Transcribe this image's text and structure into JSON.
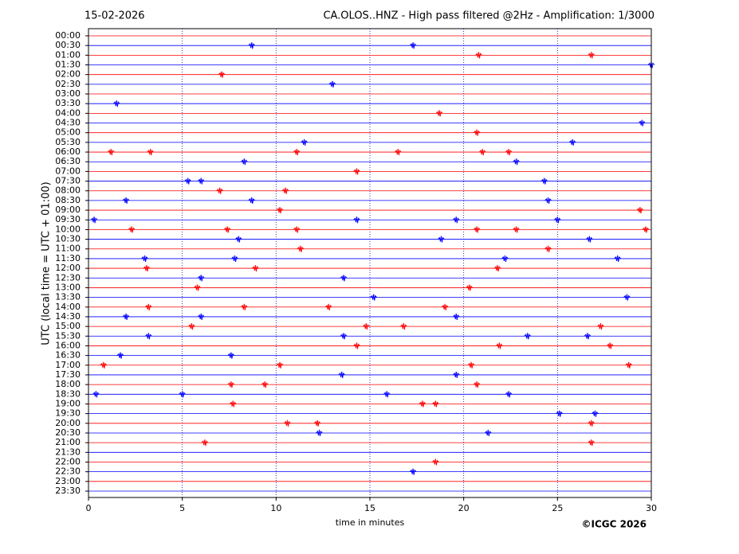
{
  "chart_data": {
    "type": "helicorder",
    "date": "15-02-2026",
    "title": "CA.OLOS..HNZ - High pass filtered @2Hz - Amplification: 1/3000",
    "y_label": "UTC (local time = UTC + 01:00)",
    "x_label": "time in minutes",
    "copyright": "©ICGC 2026",
    "xlim": [
      0,
      30
    ],
    "xticks": [
      0,
      5,
      10,
      15,
      20,
      25,
      30
    ],
    "grid": true,
    "grid_color": "#0000aa",
    "row_colors": [
      "#ff0000",
      "#0000ff"
    ],
    "categories": [
      "00:00",
      "00:30",
      "01:00",
      "01:30",
      "02:00",
      "02:30",
      "03:00",
      "03:30",
      "04:00",
      "04:30",
      "05:00",
      "05:30",
      "06:00",
      "06:30",
      "07:00",
      "07:30",
      "08:00",
      "08:30",
      "09:00",
      "09:30",
      "10:00",
      "10:30",
      "11:00",
      "11:30",
      "12:00",
      "12:30",
      "13:00",
      "13:30",
      "14:00",
      "14:30",
      "15:00",
      "15:30",
      "16:00",
      "16:30",
      "17:00",
      "17:30",
      "18:00",
      "18:30",
      "19:00",
      "19:30",
      "20:00",
      "20:30",
      "21:00",
      "21:30",
      "22:00",
      "22:30",
      "23:00",
      "23:30"
    ],
    "events": [
      [],
      [
        8.7,
        17.3
      ],
      [
        20.8,
        26.8
      ],
      [
        30
      ],
      [
        7.1
      ],
      [
        13
      ],
      [],
      [
        1.5
      ],
      [
        18.7
      ],
      [
        29.5
      ],
      [
        20.7
      ],
      [
        11.5,
        25.8
      ],
      [
        1.2,
        3.3,
        11.1,
        16.5,
        21,
        22.4
      ],
      [
        8.3,
        22.8
      ],
      [
        14.3
      ],
      [
        5.3,
        6,
        24.3
      ],
      [
        7,
        10.5
      ],
      [
        2,
        8.7,
        24.5
      ],
      [
        10.2,
        29.4
      ],
      [
        0.3,
        14.3,
        19.6,
        25
      ],
      [
        2.3,
        7.4,
        11.1,
        20.7,
        22.8,
        29.7
      ],
      [
        8,
        18.8,
        26.7
      ],
      [
        11.3,
        24.5
      ],
      [
        3,
        7.8,
        22.2,
        28.2
      ],
      [
        3.1,
        8.9,
        21.8
      ],
      [
        6,
        13.6
      ],
      [
        5.8,
        20.3
      ],
      [
        15.2,
        28.7
      ],
      [
        3.2,
        8.3,
        12.8,
        19
      ],
      [
        2,
        6,
        19.6
      ],
      [
        5.5,
        14.8,
        16.8,
        27.3
      ],
      [
        3.2,
        13.6,
        23.4,
        26.6
      ],
      [
        14.3,
        21.9,
        27.8
      ],
      [
        1.7,
        7.6
      ],
      [
        0.8,
        10.2,
        20.4,
        28.8
      ],
      [
        13.5,
        19.6
      ],
      [
        7.6,
        9.4,
        20.7
      ],
      [
        0.4,
        5,
        15.9,
        22.4
      ],
      [
        7.7,
        17.8,
        18.5
      ],
      [
        25.1,
        27
      ],
      [
        10.6,
        12.2,
        26.8
      ],
      [
        12.3,
        21.3
      ],
      [
        6.2,
        26.8
      ],
      [],
      [
        18.5
      ],
      [
        17.3
      ],
      [],
      []
    ]
  }
}
